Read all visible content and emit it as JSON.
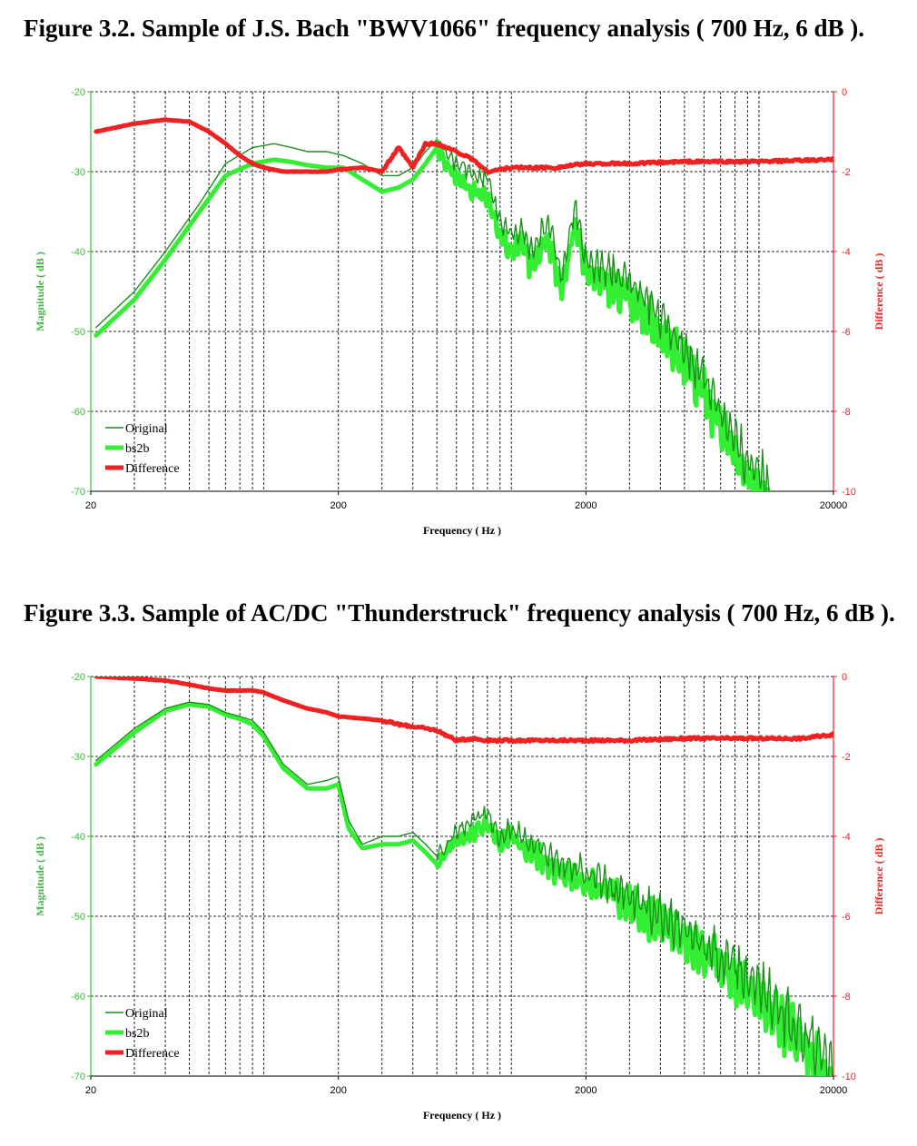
{
  "figures": [
    {
      "caption": "Figure 3.2. Sample of J.S. Bach \"BWV1066\" frequency analysis ( 700 Hz, 6 dB ).",
      "chart_data": {
        "type": "line",
        "x_scale": "log",
        "xlim": [
          20,
          20000
        ],
        "ylim": [
          -70,
          -20
        ],
        "y2lim": [
          -10,
          0
        ],
        "xlabel": "Frequency ( Hz )",
        "ylabel": "Magnitude ( dB )",
        "y2label": "Difference ( dB )",
        "xticks": [
          "20",
          "200",
          "2000",
          "20000"
        ],
        "yticks": [
          "-20",
          "-30",
          "-40",
          "-50",
          "-60",
          "-70"
        ],
        "y2ticks": [
          "0",
          "-2",
          "-4",
          "-6",
          "-8",
          "-10"
        ],
        "grid": true,
        "legend_position": "bottom-left",
        "series": [
          {
            "name": "Original",
            "axis": "left",
            "color": "#1c8f1c",
            "x": [
              21,
              30,
              40,
              55,
              70,
              90,
              110,
              130,
              150,
              180,
              210,
              250,
              300,
              350,
              400,
              450,
              500,
              600,
              700,
              800,
              900,
              1000,
              1100,
              1200,
              1400,
              1600,
              1800,
              2000,
              2400,
              3000,
              4000,
              5000,
              6000,
              7000,
              8000,
              10000,
              11000
            ],
            "y": [
              -49.5,
              -45,
              -40,
              -34,
              -29,
              -27,
              -26.5,
              -27,
              -27.5,
              -27.5,
              -28,
              -29,
              -30.5,
              -30.5,
              -29.5,
              -27.5,
              -26,
              -29,
              -30.5,
              -31,
              -36,
              -38,
              -37,
              -40,
              -36,
              -43,
              -34,
              -41,
              -42,
              -44,
              -48,
              -52,
              -56,
              -60,
              -64,
              -68,
              -70
            ]
          },
          {
            "name": "bs2b",
            "axis": "left",
            "color": "#33ee33",
            "x": [
              21,
              30,
              40,
              55,
              70,
              90,
              110,
              130,
              150,
              180,
              210,
              250,
              300,
              350,
              400,
              450,
              500,
              600,
              700,
              800,
              900,
              1000,
              1100,
              1200,
              1400,
              1600,
              1800,
              2000,
              2400,
              3000,
              4000,
              5000,
              6000,
              7000,
              8000,
              10000,
              11000
            ],
            "y": [
              -50.5,
              -46,
              -41,
              -35,
              -30.5,
              -29,
              -28.5,
              -28.8,
              -29.2,
              -29.5,
              -29.5,
              -31,
              -32.5,
              -32,
              -31,
              -29,
              -27,
              -31,
              -32.5,
              -33,
              -38,
              -40,
              -39,
              -42,
              -38,
              -45,
              -36,
              -43,
              -44,
              -46,
              -50,
              -54,
              -58,
              -62,
              -66,
              -70,
              -71
            ]
          },
          {
            "name": "Difference",
            "axis": "right",
            "color": "#ee2222",
            "x": [
              21,
              30,
              40,
              50,
              60,
              70,
              80,
              90,
              100,
              120,
              150,
              180,
              200,
              250,
              300,
              350,
              400,
              450,
              500,
              600,
              700,
              800,
              1000,
              1200,
              1500,
              2000,
              3000,
              5000,
              10000,
              20000
            ],
            "y": [
              -1.0,
              -0.8,
              -0.7,
              -0.75,
              -1.0,
              -1.3,
              -1.6,
              -1.8,
              -1.9,
              -2.0,
              -2.0,
              -2.0,
              -1.95,
              -1.9,
              -2.0,
              -1.4,
              -1.9,
              -1.3,
              -1.3,
              -1.5,
              -1.7,
              -2.0,
              -1.9,
              -1.9,
              -1.9,
              -1.8,
              -1.8,
              -1.75,
              -1.75,
              -1.7
            ]
          }
        ]
      }
    },
    {
      "caption": "Figure 3.3. Sample of AC/DC \"Thunderstruck\" frequency analysis ( 700 Hz, 6 dB ).",
      "chart_data": {
        "type": "line",
        "x_scale": "log",
        "xlim": [
          20,
          20000
        ],
        "ylim": [
          -70,
          -20
        ],
        "y2lim": [
          -10,
          0
        ],
        "xlabel": "Frequency ( Hz )",
        "ylabel": "Magnitude ( dB )",
        "y2label": "Difference ( dB )",
        "xticks": [
          "20",
          "200",
          "2000",
          "20000"
        ],
        "yticks": [
          "-20",
          "-30",
          "-40",
          "-50",
          "-60",
          "-70"
        ],
        "y2ticks": [
          "0",
          "-2",
          "-4",
          "-6",
          "-8",
          "-10"
        ],
        "grid": true,
        "legend_position": "bottom-left",
        "series": [
          {
            "name": "Original",
            "axis": "left",
            "color": "#1c8f1c",
            "x": [
              21,
              30,
              40,
              50,
              60,
              70,
              80,
              90,
              100,
              120,
              150,
              180,
              200,
              220,
              250,
              300,
              350,
              400,
              450,
              500,
              600,
              700,
              800,
              900,
              1000,
              1200,
              1500,
              2000,
              2500,
              3000,
              4000,
              5000,
              6000,
              8000,
              10000,
              12000,
              15000,
              18000,
              20000
            ],
            "y": [
              -30.5,
              -26.5,
              -24,
              -23.2,
              -23.5,
              -24.5,
              -25,
              -25.5,
              -27,
              -31,
              -33.5,
              -33,
              -32.5,
              -38,
              -41,
              -40,
              -40,
              -39.5,
              -41,
              -42.5,
              -39.5,
              -38,
              -37,
              -40,
              -39,
              -41,
              -43,
              -44.5,
              -46,
              -47.5,
              -50,
              -52,
              -53.5,
              -56,
              -59,
              -61.5,
              -64.5,
              -68,
              -69.5
            ]
          },
          {
            "name": "bs2b",
            "axis": "left",
            "color": "#33ee33",
            "x": [
              21,
              30,
              40,
              50,
              60,
              70,
              80,
              90,
              100,
              120,
              150,
              180,
              200,
              220,
              250,
              300,
              350,
              400,
              450,
              500,
              600,
              700,
              800,
              900,
              1000,
              1200,
              1500,
              2000,
              2500,
              3000,
              4000,
              5000,
              6000,
              8000,
              10000,
              12000,
              15000,
              18000,
              20000
            ],
            "y": [
              -31,
              -27,
              -24.3,
              -23.5,
              -23.8,
              -24.8,
              -25.3,
              -26,
              -27.5,
              -31.5,
              -34,
              -34,
              -33.5,
              -39,
              -41.5,
              -41,
              -41,
              -40.5,
              -42,
              -43.5,
              -40.5,
              -39.5,
              -38.5,
              -41,
              -40,
              -42,
              -44,
              -46,
              -47,
              -48.5,
              -51,
              -53,
              -55,
              -57.5,
              -60.5,
              -63,
              -66,
              -69.5,
              -71
            ]
          },
          {
            "name": "Difference",
            "axis": "right",
            "color": "#ee2222",
            "x": [
              21,
              30,
              40,
              50,
              60,
              70,
              80,
              90,
              100,
              120,
              150,
              180,
              200,
              250,
              300,
              350,
              400,
              450,
              500,
              600,
              700,
              800,
              1000,
              1200,
              1500,
              2000,
              3000,
              5000,
              10000,
              15000,
              20000
            ],
            "y": [
              0,
              -0.05,
              -0.1,
              -0.2,
              -0.3,
              -0.35,
              -0.35,
              -0.35,
              -0.4,
              -0.6,
              -0.8,
              -0.9,
              -1.0,
              -1.05,
              -1.1,
              -1.2,
              -1.25,
              -1.3,
              -1.35,
              -1.6,
              -1.55,
              -1.6,
              -1.6,
              -1.6,
              -1.6,
              -1.6,
              -1.6,
              -1.55,
              -1.55,
              -1.55,
              -1.45
            ]
          }
        ]
      }
    }
  ]
}
